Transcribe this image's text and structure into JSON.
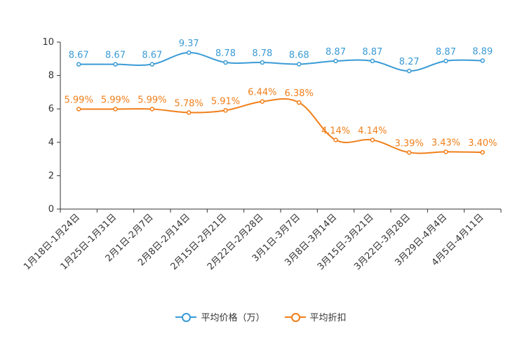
{
  "chart_data": {
    "type": "line",
    "categories": [
      "1月18日-1月24日",
      "1月25日-1月31日",
      "2月1日-2月7日",
      "2月8日-2月14日",
      "2月15日-2月21日",
      "2月22日-2月28日",
      "3月1日-3月7日",
      "3月8日-3月14日",
      "3月15日-3月21日",
      "3月22日-3月28日",
      "3月29日-4月4日",
      "4月5日-4月11日"
    ],
    "ylim": [
      0,
      10
    ],
    "yticks": [
      "0",
      "2",
      "4",
      "6",
      "8",
      "10"
    ],
    "series": [
      {
        "name": "平均价格（万）",
        "color": "#3a9bd5",
        "values": [
          8.67,
          8.67,
          8.67,
          9.37,
          8.78,
          8.78,
          8.68,
          8.87,
          8.87,
          8.27,
          8.87,
          8.89
        ],
        "labels": [
          "8.67",
          "8.67",
          "8.67",
          "9.37",
          "8.78",
          "8.78",
          "8.68",
          "8.87",
          "8.87",
          "8.27",
          "8.87",
          "8.89"
        ]
      },
      {
        "name": "平均折扣",
        "color": "#f07f1a",
        "values": [
          5.99,
          5.99,
          5.99,
          5.78,
          5.91,
          6.44,
          6.38,
          4.14,
          4.14,
          3.39,
          3.43,
          3.4
        ],
        "labels": [
          "5.99%",
          "5.99%",
          "5.99%",
          "5.78%",
          "5.91%",
          "6.44%",
          "6.38%",
          "4.14%",
          "4.14%",
          "3.39%",
          "3.43%",
          "3.40%"
        ]
      }
    ]
  }
}
